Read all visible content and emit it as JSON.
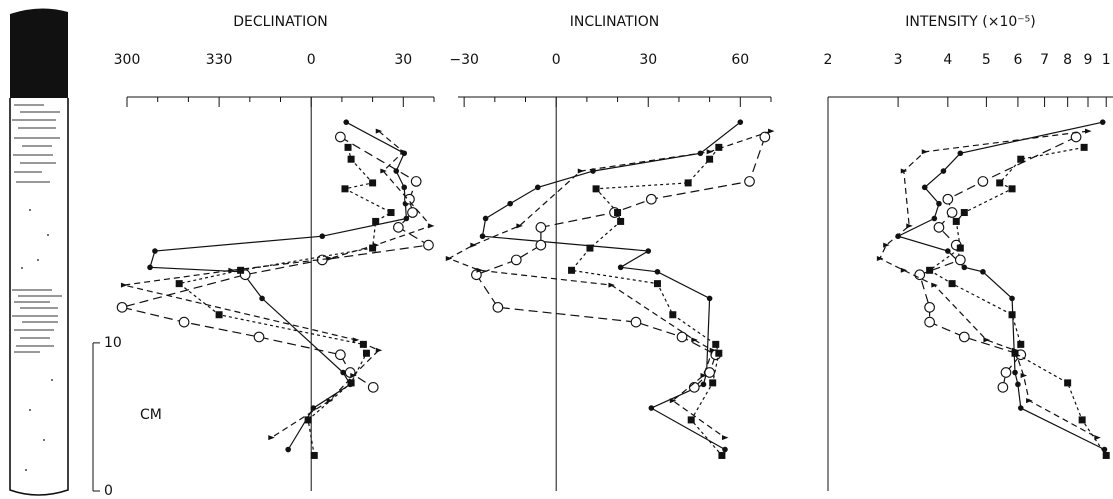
{
  "depth_axis": {
    "label": "CM",
    "ylim": [
      0,
      26.6
    ],
    "ticks": [
      0,
      10
    ]
  },
  "chart_data": [
    {
      "type": "profile",
      "title": "DECLINATION",
      "xlim": [
        -60,
        40
      ],
      "xticks": [
        {
          "value": -60,
          "label": "300"
        },
        {
          "value": -30,
          "label": "330"
        },
        0,
        30
      ],
      "xminor": [
        -50,
        -40,
        -20,
        -10,
        10,
        20,
        40
      ],
      "series": [
        {
          "marker": "filled-circle",
          "linestyle": "solid",
          "color": "#111111",
          "depth": [
            24.9,
            22.8,
            21.6,
            20.5,
            19.4,
            18.4,
            17.2,
            16.2,
            15.1,
            14.8,
            13.0,
            8.0,
            7.2,
            5.6,
            2.8
          ],
          "values": [
            11.4,
            30.3,
            27.7,
            30.3,
            30.7,
            31.0,
            3.6,
            -50.9,
            -52.5,
            -22.5,
            -16.0,
            10.4,
            12.7,
            0.7,
            -7.5
          ]
        },
        {
          "marker": "open-circle",
          "linestyle": "dashed",
          "color": "#111111",
          "depth": [
            23.9,
            20.9,
            19.7,
            18.8,
            17.8,
            16.6,
            15.6,
            14.6,
            12.4,
            11.4,
            10.4,
            9.2,
            8.0,
            7.0
          ],
          "values": [
            9.5,
            34.2,
            32,
            33,
            28.4,
            38.2,
            3.6,
            -21.5,
            -61.6,
            -41.4,
            -17,
            9.5,
            12.7,
            20.2
          ]
        },
        {
          "marker": "triangle",
          "linestyle": "dash-arrow",
          "color": "#111111",
          "depth": [
            24.3,
            22.9,
            21.6,
            17.9,
            16.6,
            15.7,
            14.9,
            13.9,
            10.2,
            9.5,
            7.8,
            6.1,
            3.6
          ],
          "values": [
            22,
            30,
            23.5,
            39,
            21,
            6,
            -26,
            -61,
            14.5,
            22,
            13.7,
            6,
            -13
          ]
        },
        {
          "marker": "square",
          "linestyle": "dotted",
          "color": "#111111",
          "depth": [
            23.2,
            22.4,
            20.8,
            20.4,
            18.8,
            18.2,
            16.4,
            14.9,
            14.0,
            11.9,
            9.9,
            9.3,
            7.3,
            4.8,
            2.4
          ],
          "values": [
            12,
            13,
            20,
            11,
            26,
            21,
            20,
            -23,
            -43,
            -30,
            17,
            18,
            13,
            -1,
            1
          ]
        }
      ]
    },
    {
      "type": "profile",
      "title": "INCLINATION",
      "xlim": [
        -32,
        70
      ],
      "xticks": [
        {
          "value": -30,
          "label": "−30"
        },
        0,
        30,
        60
      ],
      "xminor": [
        -20,
        -10,
        10,
        20,
        40,
        50,
        70
      ],
      "series": [
        {
          "marker": "filled-circle",
          "linestyle": "solid",
          "color": "#111111",
          "depth": [
            24.9,
            22.8,
            21.6,
            20.5,
            19.4,
            18.4,
            17.2,
            16.2,
            15.1,
            14.8,
            13.0,
            8.0,
            7.2,
            5.6,
            2.8
          ],
          "values": [
            60,
            47,
            12,
            -6,
            -15,
            -23,
            -24,
            30,
            21,
            33,
            50,
            49,
            48,
            31,
            55
          ]
        },
        {
          "marker": "open-circle",
          "linestyle": "dashed",
          "color": "#111111",
          "depth": [
            23.9,
            20.9,
            19.7,
            18.8,
            17.8,
            16.6,
            15.6,
            14.6,
            12.4,
            11.4,
            10.4,
            9.2,
            8.0,
            7.0
          ],
          "values": [
            68,
            63,
            31,
            19,
            -5,
            -5,
            -13,
            -26,
            -19,
            26,
            41,
            52,
            50,
            45
          ]
        },
        {
          "marker": "triangle",
          "linestyle": "dash-arrow",
          "color": "#111111",
          "depth": [
            24.3,
            22.9,
            21.6,
            17.9,
            16.6,
            15.7,
            14.9,
            13.9,
            10.2,
            9.5,
            7.8,
            6.1,
            3.6
          ],
          "values": [
            70,
            50,
            8,
            -12,
            -27,
            -35,
            -25,
            18,
            45,
            51,
            48,
            38,
            55
          ]
        },
        {
          "marker": "square",
          "linestyle": "dotted",
          "color": "#111111",
          "depth": [
            23.2,
            22.4,
            20.8,
            20.4,
            18.8,
            18.2,
            16.4,
            14.9,
            14.0,
            11.9,
            9.9,
            9.3,
            7.3,
            4.8,
            2.4
          ],
          "values": [
            53,
            50,
            43,
            13,
            20,
            21,
            11,
            5,
            33,
            38,
            52,
            53,
            51,
            44,
            54
          ]
        }
      ]
    },
    {
      "type": "profile",
      "title": "INTENSITY (×10⁻⁵)",
      "log": true,
      "xlim": [
        2,
        10.4
      ],
      "xticks": [
        2,
        3,
        4,
        5,
        6,
        7,
        8,
        9,
        {
          "value": 10,
          "label": "1"
        }
      ],
      "series": [
        {
          "marker": "filled-circle",
          "linestyle": "solid",
          "color": "#111111",
          "depth": [
            24.9,
            22.8,
            21.6,
            20.5,
            19.4,
            18.4,
            17.2,
            16.2,
            15.1,
            14.8,
            13.0,
            8.0,
            7.2,
            5.6,
            2.8
          ],
          "values": [
            9.8,
            4.3,
            3.9,
            3.5,
            3.8,
            3.7,
            3.0,
            4.0,
            4.4,
            4.9,
            5.8,
            5.9,
            6.0,
            6.1,
            9.9
          ]
        },
        {
          "marker": "open-circle",
          "linestyle": "dashed",
          "color": "#111111",
          "depth": [
            23.9,
            20.9,
            19.7,
            18.8,
            17.8,
            16.6,
            15.6,
            14.6,
            12.4,
            11.4,
            10.4,
            9.2,
            8.0,
            7.0
          ],
          "values": [
            8.4,
            4.9,
            4.0,
            4.1,
            3.8,
            4.2,
            4.3,
            3.4,
            3.6,
            3.6,
            4.4,
            6.1,
            5.6,
            5.5
          ]
        },
        {
          "marker": "triangle",
          "linestyle": "dash-arrow",
          "color": "#111111",
          "depth": [
            24.3,
            22.9,
            21.6,
            17.9,
            16.6,
            15.7,
            14.9,
            13.9,
            10.2,
            9.5,
            7.8,
            6.1,
            3.6
          ],
          "values": [
            9.0,
            3.5,
            3.1,
            3.2,
            2.8,
            2.7,
            3.1,
            3.7,
            5.0,
            5.9,
            6.2,
            6.4,
            9.5
          ]
        },
        {
          "marker": "square",
          "linestyle": "dotted",
          "color": "#111111",
          "depth": [
            23.2,
            22.4,
            20.8,
            20.4,
            18.8,
            18.2,
            16.4,
            14.9,
            14.0,
            11.9,
            9.9,
            9.3,
            7.3,
            4.8,
            2.4
          ],
          "values": [
            8.8,
            6.1,
            5.4,
            5.8,
            4.4,
            4.2,
            4.3,
            3.6,
            4.1,
            5.8,
            6.1,
            5.9,
            8.0,
            8.7,
            10.0
          ]
        }
      ]
    }
  ]
}
